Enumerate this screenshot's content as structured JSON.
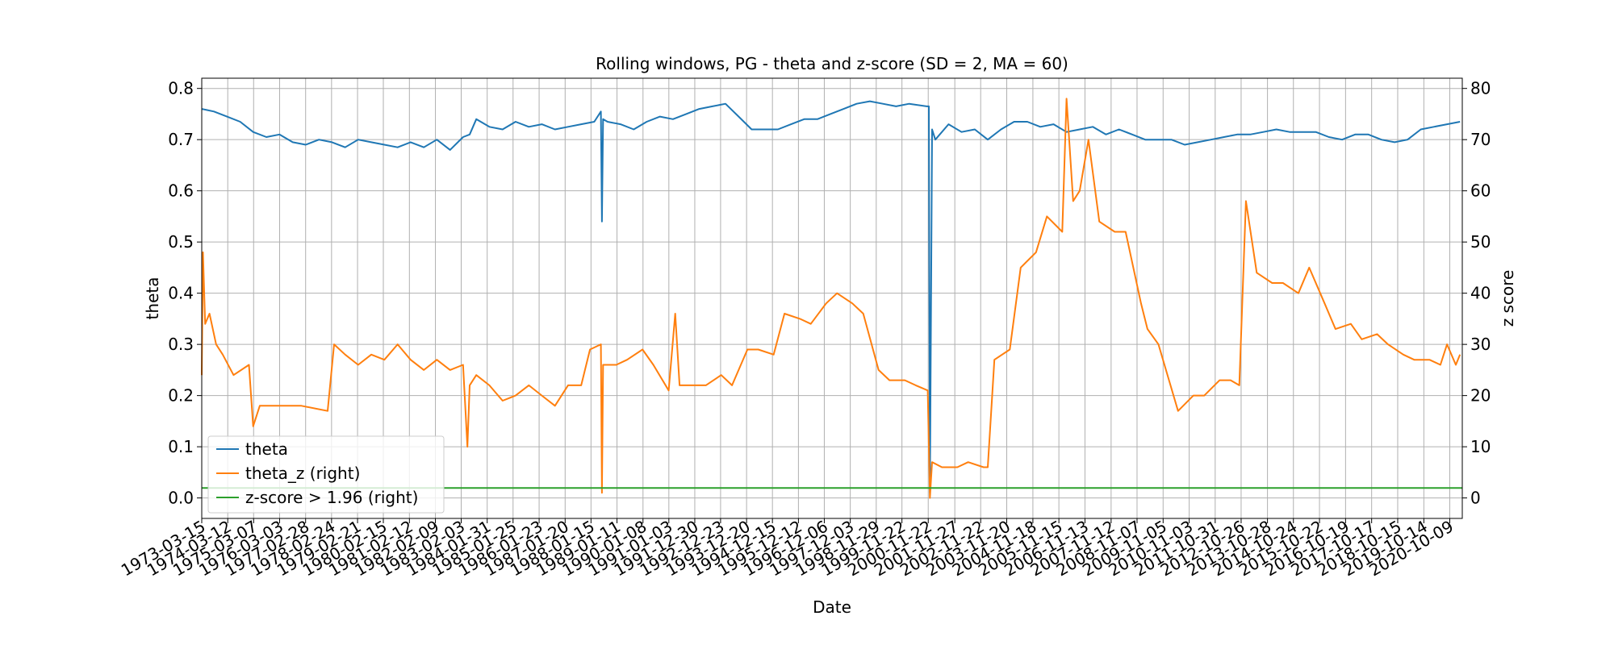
{
  "chart_data": {
    "type": "line",
    "title": "Rolling windows, PG - theta and z-score (SD = 2, MA = 60)",
    "xlabel": "Date",
    "ylabel_left": "theta",
    "ylabel_right": "z score",
    "xlim": [
      "1973-03-15",
      "2021-04-01"
    ],
    "ylim_left": [
      -0.04,
      0.82
    ],
    "ylim_right": [
      -4,
      82
    ],
    "yticks_left": [
      0.0,
      0.1,
      0.2,
      0.3,
      0.4,
      0.5,
      0.6,
      0.7,
      0.8
    ],
    "yticks_left_labels": [
      "0.0",
      "0.1",
      "0.2",
      "0.3",
      "0.4",
      "0.5",
      "0.6",
      "0.7",
      "0.8"
    ],
    "yticks_right": [
      0,
      10,
      20,
      30,
      40,
      50,
      60,
      70,
      80
    ],
    "yticks_right_labels": [
      "0",
      "10",
      "20",
      "30",
      "40",
      "50",
      "60",
      "70",
      "80"
    ],
    "xticks": [
      "1973-03-15",
      "1974-03-12",
      "1975-03-07",
      "1976-03-03",
      "1977-02-28",
      "1978-02-24",
      "1979-02-21",
      "1980-02-15",
      "1981-02-12",
      "1982-02-09",
      "1983-02-03",
      "1984-01-31",
      "1985-01-25",
      "1986-01-23",
      "1987-01-20",
      "1988-01-15",
      "1989-01-11",
      "1990-01-08",
      "1991-01-03",
      "1991-12-30",
      "1992-12-23",
      "1993-12-20",
      "1994-12-15",
      "1995-12-12",
      "1996-12-06",
      "1997-12-03",
      "1998-11-29",
      "1999-11-22",
      "2000-11-22",
      "2001-11-27",
      "2002-11-22",
      "2003-11-20",
      "2004-11-18",
      "2005-11-15",
      "2006-11-13",
      "2007-11-12",
      "2008-11-07",
      "2009-11-05",
      "2010-11-03",
      "2011-10-31",
      "2012-10-26",
      "2013-10-28",
      "2014-10-24",
      "2015-10-22",
      "2016-10-19",
      "2017-10-17",
      "2018-10-15",
      "2019-10-14",
      "2020-10-09"
    ],
    "grid": true,
    "legend_position": "lower-left",
    "series": [
      {
        "name": "theta",
        "axis": "left",
        "color": "#1f77b4",
        "x": [
          "1973-03-15",
          "1973-09-01",
          "1974-03-01",
          "1974-09-01",
          "1975-03-01",
          "1975-09-01",
          "1976-03-01",
          "1976-09-01",
          "1977-03-01",
          "1977-09-01",
          "1978-03-01",
          "1978-09-01",
          "1979-03-01",
          "1979-09-01",
          "1980-03-01",
          "1980-09-01",
          "1981-03-01",
          "1981-09-01",
          "1982-03-01",
          "1982-09-01",
          "1983-03-01",
          "1983-06-01",
          "1983-09-01",
          "1984-03-01",
          "1984-09-01",
          "1985-03-01",
          "1985-09-01",
          "1986-03-01",
          "1986-09-01",
          "1987-03-01",
          "1987-09-01",
          "1988-03-01",
          "1988-06-01",
          "1988-06-15",
          "1988-07-01",
          "1988-09-01",
          "1989-03-01",
          "1989-09-01",
          "1990-03-01",
          "1990-09-01",
          "1991-03-01",
          "1991-09-01",
          "1992-03-01",
          "1992-09-01",
          "1993-03-01",
          "1993-09-01",
          "1994-03-01",
          "1994-09-01",
          "1995-03-01",
          "1995-09-01",
          "1996-03-01",
          "1996-09-01",
          "1997-03-01",
          "1997-09-01",
          "1998-03-01",
          "1998-09-01",
          "1999-03-01",
          "1999-09-01",
          "2000-03-01",
          "2000-11-01",
          "2000-12-01",
          "2000-12-15",
          "2001-01-15",
          "2001-03-01",
          "2001-09-01",
          "2002-03-01",
          "2002-09-01",
          "2003-03-01",
          "2003-09-01",
          "2004-03-01",
          "2004-09-01",
          "2005-03-01",
          "2005-09-01",
          "2006-03-01",
          "2006-09-01",
          "2007-03-01",
          "2007-09-01",
          "2008-03-01",
          "2008-09-01",
          "2009-03-01",
          "2009-09-01",
          "2010-03-01",
          "2010-09-01",
          "2011-03-01",
          "2011-09-01",
          "2012-03-01",
          "2012-09-01",
          "2013-03-01",
          "2013-09-01",
          "2014-03-01",
          "2014-09-01",
          "2015-03-01",
          "2015-09-01",
          "2016-03-01",
          "2016-09-01",
          "2017-03-01",
          "2017-09-01",
          "2018-03-01",
          "2018-09-01",
          "2019-03-01",
          "2019-09-01",
          "2020-03-01",
          "2020-09-01",
          "2021-03-01"
        ],
        "y": [
          0.76,
          0.755,
          0.745,
          0.735,
          0.715,
          0.705,
          0.71,
          0.695,
          0.69,
          0.7,
          0.695,
          0.685,
          0.7,
          0.695,
          0.69,
          0.685,
          0.695,
          0.685,
          0.7,
          0.68,
          0.705,
          0.71,
          0.74,
          0.725,
          0.72,
          0.735,
          0.725,
          0.73,
          0.72,
          0.725,
          0.73,
          0.735,
          0.755,
          0.54,
          0.74,
          0.735,
          0.73,
          0.72,
          0.735,
          0.745,
          0.74,
          0.75,
          0.76,
          0.765,
          0.77,
          0.745,
          0.72,
          0.72,
          0.72,
          0.73,
          0.74,
          0.74,
          0.75,
          0.76,
          0.77,
          0.775,
          0.77,
          0.765,
          0.77,
          0.765,
          0.765,
          0.01,
          0.72,
          0.7,
          0.73,
          0.715,
          0.72,
          0.7,
          0.72,
          0.735,
          0.735,
          0.725,
          0.73,
          0.715,
          0.72,
          0.725,
          0.71,
          0.72,
          0.71,
          0.7,
          0.7,
          0.7,
          0.69,
          0.695,
          0.7,
          0.705,
          0.71,
          0.71,
          0.715,
          0.72,
          0.715,
          0.715,
          0.715,
          0.705,
          0.7,
          0.71,
          0.71,
          0.7,
          0.695,
          0.7,
          0.72,
          0.725,
          0.73,
          0.735
        ]
      },
      {
        "name": "theta_z (right)",
        "axis": "right",
        "color": "#ff7f0e",
        "x": [
          "1973-03-15",
          "1973-04-01",
          "1973-05-01",
          "1973-07-01",
          "1973-10-01",
          "1974-01-01",
          "1974-06-01",
          "1975-01-01",
          "1975-03-01",
          "1975-06-01",
          "1976-01-01",
          "1977-01-01",
          "1978-01-01",
          "1978-04-01",
          "1978-09-01",
          "1979-03-01",
          "1979-09-01",
          "1980-03-01",
          "1980-09-01",
          "1981-03-01",
          "1981-09-01",
          "1982-03-01",
          "1982-09-01",
          "1983-03-01",
          "1983-05-01",
          "1983-06-01",
          "1983-09-01",
          "1984-03-01",
          "1984-09-01",
          "1985-03-01",
          "1985-09-01",
          "1986-03-01",
          "1986-09-01",
          "1987-03-01",
          "1987-09-01",
          "1988-01-01",
          "1988-06-01",
          "1988-06-15",
          "1988-07-01",
          "1989-01-01",
          "1989-06-01",
          "1990-01-01",
          "1990-06-01",
          "1991-01-01",
          "1991-04-01",
          "1991-06-01",
          "1992-01-01",
          "1992-06-01",
          "1993-01-01",
          "1993-06-01",
          "1994-01-01",
          "1994-06-01",
          "1995-01-01",
          "1995-06-01",
          "1996-01-01",
          "1996-06-01",
          "1997-01-01",
          "1997-06-01",
          "1998-01-01",
          "1998-06-01",
          "1999-01-01",
          "1999-06-01",
          "2000-01-01",
          "2000-06-01",
          "2000-11-15",
          "2000-12-15",
          "2001-01-15",
          "2001-06-01",
          "2002-01-01",
          "2002-06-01",
          "2003-01-01",
          "2003-03-01",
          "2003-06-01",
          "2004-01-01",
          "2004-06-01",
          "2005-01-01",
          "2005-06-01",
          "2006-01-01",
          "2006-03-01",
          "2006-06-01",
          "2006-09-01",
          "2007-01-01",
          "2007-06-01",
          "2008-01-01",
          "2008-06-01",
          "2009-01-01",
          "2009-04-01",
          "2009-09-01",
          "2010-06-01",
          "2011-01-01",
          "2011-06-01",
          "2012-01-01",
          "2012-06-01",
          "2012-10-01",
          "2013-01-01",
          "2013-06-01",
          "2014-01-01",
          "2014-06-01",
          "2015-01-01",
          "2015-06-01",
          "2016-01-01",
          "2016-06-01",
          "2017-01-01",
          "2017-06-01",
          "2018-01-01",
          "2018-06-01",
          "2019-01-01",
          "2019-06-01",
          "2020-01-01",
          "2020-06-01",
          "2020-09-01",
          "2021-01-01",
          "2021-03-01"
        ],
        "y": [
          24,
          48,
          34,
          36,
          30,
          28,
          24,
          26,
          14,
          18,
          18,
          18,
          17,
          30,
          28,
          26,
          28,
          27,
          30,
          27,
          25,
          27,
          25,
          26,
          10,
          22,
          24,
          22,
          19,
          20,
          22,
          20,
          18,
          22,
          22,
          29,
          30,
          1,
          26,
          26,
          27,
          29,
          26,
          21,
          36,
          22,
          22,
          22,
          24,
          22,
          29,
          29,
          28,
          36,
          35,
          34,
          38,
          40,
          38,
          36,
          25,
          23,
          23,
          22,
          21,
          0,
          7,
          6,
          6,
          7,
          6,
          6,
          27,
          29,
          45,
          48,
          55,
          52,
          78,
          58,
          60,
          70,
          54,
          52,
          52,
          38,
          33,
          30,
          17,
          20,
          20,
          23,
          23,
          22,
          58,
          44,
          42,
          42,
          40,
          45,
          38,
          33,
          34,
          31,
          32,
          30,
          28,
          27,
          27,
          26,
          30,
          26,
          28
        ]
      },
      {
        "name": "z-score > 1.96 (right)",
        "axis": "right",
        "color": "#2ca02c",
        "x": [
          "1973-03-15",
          "2021-04-01"
        ],
        "y": [
          1.96,
          1.96
        ]
      }
    ]
  }
}
